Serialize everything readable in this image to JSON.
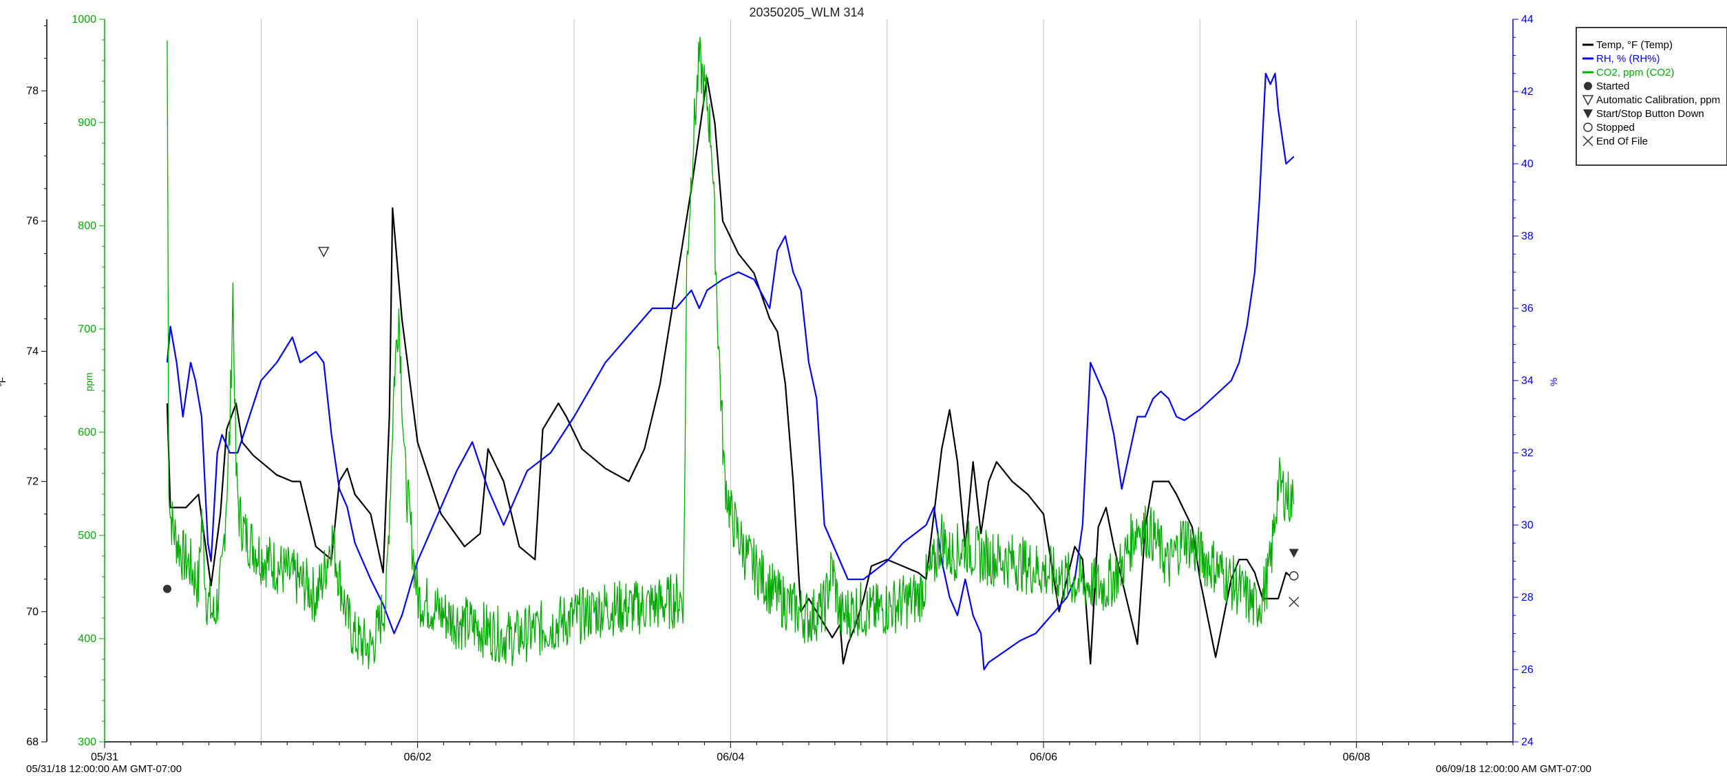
{
  "colors": {
    "temp": "#000000",
    "rh": "#0000ff",
    "co2": "#00aa00",
    "grid": "#bdbdbd",
    "background": "#ffffff"
  },
  "chart_data": {
    "type": "line",
    "title": "20350205_WLM 314",
    "x_axis": {
      "range": [
        "05/31/18 00:00",
        "06/09/18 00:00"
      ],
      "ticks": [
        "05/31",
        "06/02",
        "06/04",
        "06/06",
        "06/08"
      ],
      "start_label": "05/31/18 12:00:00 AM GMT-07:00",
      "end_label": "06/09/18 12:00:00 AM GMT-07:00"
    },
    "y_axes": [
      {
        "id": "temp",
        "label": "°F",
        "side": "left-outer",
        "range": [
          68,
          79.1
        ],
        "ticks": [
          68,
          70,
          72,
          74,
          76,
          78
        ]
      },
      {
        "id": "co2",
        "label": "ppm",
        "side": "left-inner",
        "range": [
          300,
          1000
        ],
        "ticks": [
          300,
          400,
          500,
          600,
          700,
          800,
          900,
          1000
        ]
      },
      {
        "id": "rh",
        "label": "%",
        "side": "right",
        "range": [
          24,
          44
        ],
        "ticks": [
          24,
          26,
          28,
          30,
          32,
          34,
          36,
          38,
          40,
          42,
          44
        ]
      }
    ],
    "grid": true,
    "legend_position": "top-right",
    "legend": [
      {
        "label": "Temp, °F (Temp)",
        "kind": "line",
        "color": "#000000"
      },
      {
        "label": "RH, % (RH%)",
        "kind": "line",
        "color": "#0000ff"
      },
      {
        "label": "CO2, ppm (CO2)",
        "kind": "line",
        "color": "#00aa00"
      },
      {
        "label": "Started",
        "kind": "filled-circle"
      },
      {
        "label": "Automatic Calibration, ppm",
        "kind": "open-triangle-down"
      },
      {
        "label": "Start/Stop Button Down",
        "kind": "filled-triangle-down"
      },
      {
        "label": "Stopped",
        "kind": "open-circle"
      },
      {
        "label": "End Of File",
        "kind": "cross"
      }
    ],
    "series": [
      {
        "name": "Temp, °F (Temp)",
        "axis": "temp",
        "x_days": [
          0.4,
          0.42,
          0.46,
          0.52,
          0.6,
          0.68,
          0.74,
          0.78,
          0.84,
          0.88,
          0.95,
          1.0,
          1.1,
          1.2,
          1.25,
          1.35,
          1.45,
          1.5,
          1.55,
          1.6,
          1.7,
          1.78,
          1.82,
          1.84,
          1.9,
          2.0,
          2.15,
          2.3,
          2.4,
          2.45,
          2.55,
          2.65,
          2.75,
          2.8,
          2.9,
          2.95,
          3.05,
          3.2,
          3.35,
          3.45,
          3.55,
          3.65,
          3.75,
          3.85,
          3.9,
          3.95,
          4.05,
          4.15,
          4.25,
          4.3,
          4.35,
          4.4,
          4.45,
          4.5,
          4.55,
          4.6,
          4.65,
          4.7,
          4.72,
          4.75,
          4.8,
          4.85,
          4.9,
          5.0,
          5.1,
          5.2,
          5.25,
          5.3,
          5.35,
          5.4,
          5.45,
          5.5,
          5.55,
          5.6,
          5.65,
          5.7,
          5.8,
          5.9,
          6.0,
          6.1,
          6.2,
          6.25,
          6.3,
          6.35,
          6.4,
          6.45,
          6.5,
          6.55,
          6.6,
          6.65,
          6.7,
          6.75,
          6.8,
          6.85,
          6.95,
          7.0,
          7.1,
          7.2,
          7.25,
          7.3,
          7.35,
          7.4,
          7.5,
          7.55,
          7.6
        ],
        "values": [
          73.2,
          71.6,
          71.6,
          71.6,
          71.8,
          70.4,
          71.5,
          72.8,
          73.2,
          72.6,
          72.4,
          72.3,
          72.1,
          72.0,
          72.0,
          71.0,
          70.8,
          72.0,
          72.2,
          71.8,
          71.5,
          70.6,
          73.0,
          76.2,
          74.5,
          72.6,
          71.5,
          71.0,
          71.2,
          72.5,
          72.0,
          71.0,
          70.8,
          72.8,
          73.2,
          73.0,
          72.5,
          72.2,
          72.0,
          72.5,
          73.5,
          75.0,
          76.5,
          78.2,
          77.5,
          76.0,
          75.5,
          75.2,
          74.5,
          74.3,
          73.5,
          72.0,
          70.0,
          70.2,
          70.0,
          69.8,
          69.6,
          69.8,
          69.2,
          69.5,
          69.8,
          70.2,
          70.7,
          70.8,
          70.7,
          70.6,
          70.5,
          71.5,
          72.5,
          73.1,
          72.3,
          71.0,
          72.3,
          71.2,
          72.0,
          72.3,
          72.0,
          71.8,
          71.5,
          70.0,
          71.0,
          70.8,
          69.2,
          71.3,
          71.6,
          71.0,
          70.5,
          70.0,
          69.5,
          71.3,
          72.0,
          72.0,
          72.0,
          71.8,
          71.3,
          70.5,
          69.3,
          70.5,
          70.8,
          70.8,
          70.6,
          70.2,
          70.2,
          70.6,
          70.5
        ]
      },
      {
        "name": "RH, % (RH%)",
        "axis": "rh",
        "x_days": [
          0.4,
          0.42,
          0.46,
          0.5,
          0.55,
          0.58,
          0.62,
          0.66,
          0.68,
          0.72,
          0.75,
          0.8,
          0.85,
          1.0,
          1.1,
          1.2,
          1.25,
          1.35,
          1.4,
          1.45,
          1.5,
          1.55,
          1.6,
          1.7,
          1.78,
          1.85,
          1.9,
          2.0,
          2.15,
          2.25,
          2.35,
          2.45,
          2.5,
          2.55,
          2.7,
          2.85,
          3.0,
          3.2,
          3.4,
          3.5,
          3.65,
          3.75,
          3.8,
          3.85,
          3.95,
          4.05,
          4.15,
          4.25,
          4.3,
          4.35,
          4.4,
          4.45,
          4.5,
          4.55,
          4.6,
          4.7,
          4.75,
          4.85,
          5.0,
          5.1,
          5.25,
          5.3,
          5.35,
          5.4,
          5.45,
          5.5,
          5.55,
          5.6,
          5.62,
          5.65,
          5.75,
          5.85,
          5.95,
          6.05,
          6.15,
          6.2,
          6.25,
          6.3,
          6.35,
          6.4,
          6.45,
          6.5,
          6.55,
          6.6,
          6.65,
          6.7,
          6.75,
          6.8,
          6.85,
          6.9,
          7.0,
          7.1,
          7.2,
          7.25,
          7.3,
          7.35,
          7.38,
          7.42,
          7.45,
          7.48,
          7.5,
          7.55,
          7.6
        ],
        "values": [
          34.5,
          35.5,
          34.5,
          33.0,
          34.5,
          34.0,
          33.0,
          29.5,
          29.0,
          32.0,
          32.5,
          32.0,
          32.0,
          34.0,
          34.5,
          35.2,
          34.5,
          34.8,
          34.5,
          32.5,
          31.0,
          30.5,
          29.5,
          28.5,
          27.8,
          27.0,
          27.5,
          29.0,
          30.5,
          31.5,
          32.3,
          31.0,
          30.5,
          30.0,
          31.5,
          32.0,
          33.0,
          34.5,
          35.5,
          36.0,
          36.0,
          36.5,
          36.0,
          36.5,
          36.8,
          37.0,
          36.8,
          36.0,
          37.6,
          38.0,
          37.0,
          36.5,
          34.5,
          33.5,
          30.0,
          29.0,
          28.5,
          28.5,
          29.0,
          29.5,
          30.0,
          30.5,
          29.0,
          28.0,
          27.5,
          28.5,
          27.5,
          27.0,
          26.0,
          26.2,
          26.5,
          26.8,
          27.0,
          27.5,
          28.0,
          28.5,
          30.0,
          34.5,
          34.0,
          33.5,
          32.5,
          31.0,
          32.0,
          33.0,
          33.0,
          33.5,
          33.7,
          33.5,
          33.0,
          32.9,
          33.2,
          33.6,
          34.0,
          34.5,
          35.5,
          37.0,
          39.0,
          42.5,
          42.2,
          42.5,
          41.5,
          40.0,
          40.2
        ]
      },
      {
        "name": "CO2, ppm (CO2)",
        "axis": "co2",
        "x_days": [
          0.4,
          0.41,
          0.42,
          0.45,
          0.5,
          0.55,
          0.6,
          0.62,
          0.65,
          0.7,
          0.75,
          0.8,
          0.82,
          0.84,
          0.86,
          0.9,
          1.0,
          1.1,
          1.2,
          1.3,
          1.35,
          1.4,
          1.45,
          1.5,
          1.55,
          1.6,
          1.7,
          1.75,
          1.8,
          1.85,
          1.88,
          1.92,
          2.0,
          2.2,
          2.4,
          2.6,
          2.8,
          3.0,
          3.2,
          3.4,
          3.6,
          3.7,
          3.72,
          3.76,
          3.8,
          3.85,
          3.88,
          3.92,
          3.96,
          4.0,
          4.1,
          4.2,
          4.3,
          4.4,
          4.5,
          4.6,
          4.65,
          4.7,
          4.8,
          4.9,
          5.0,
          5.2,
          5.3,
          5.35,
          5.4,
          5.5,
          5.6,
          5.8,
          6.0,
          6.2,
          6.4,
          6.5,
          6.6,
          6.7,
          6.8,
          6.9,
          7.0,
          7.1,
          7.2,
          7.3,
          7.35,
          7.4,
          7.45,
          7.5,
          7.55,
          7.6
        ],
        "values": [
          980,
          560,
          520,
          500,
          480,
          470,
          450,
          520,
          440,
          420,
          460,
          600,
          740,
          560,
          520,
          500,
          480,
          470,
          460,
          450,
          440,
          460,
          500,
          460,
          420,
          400,
          390,
          410,
          440,
          650,
          720,
          560,
          440,
          420,
          410,
          400,
          410,
          420,
          430,
          430,
          435,
          440,
          760,
          880,
          960,
          920,
          880,
          700,
          560,
          520,
          480,
          460,
          440,
          430,
          420,
          430,
          470,
          420,
          430,
          425,
          430,
          440,
          470,
          500,
          480,
          490,
          480,
          475,
          465,
          455,
          450,
          470,
          510,
          500,
          470,
          500,
          480,
          470,
          455,
          440,
          430,
          440,
          470,
          550,
          540,
          530
        ]
      }
    ],
    "markers": [
      {
        "label": "Started",
        "x_day": 0.4,
        "axis": "temp",
        "y": 70.35
      },
      {
        "label": "Automatic Calibration, ppm",
        "x_day": 1.4,
        "axis": "co2",
        "y": 775
      },
      {
        "label": "Start/Stop Button Down",
        "x_day": 7.6,
        "axis": "temp",
        "y": 70.9
      },
      {
        "label": "Stopped",
        "x_day": 7.6,
        "axis": "temp",
        "y": 70.55
      },
      {
        "label": "End Of File",
        "x_day": 7.6,
        "axis": "temp",
        "y": 70.15
      }
    ]
  }
}
